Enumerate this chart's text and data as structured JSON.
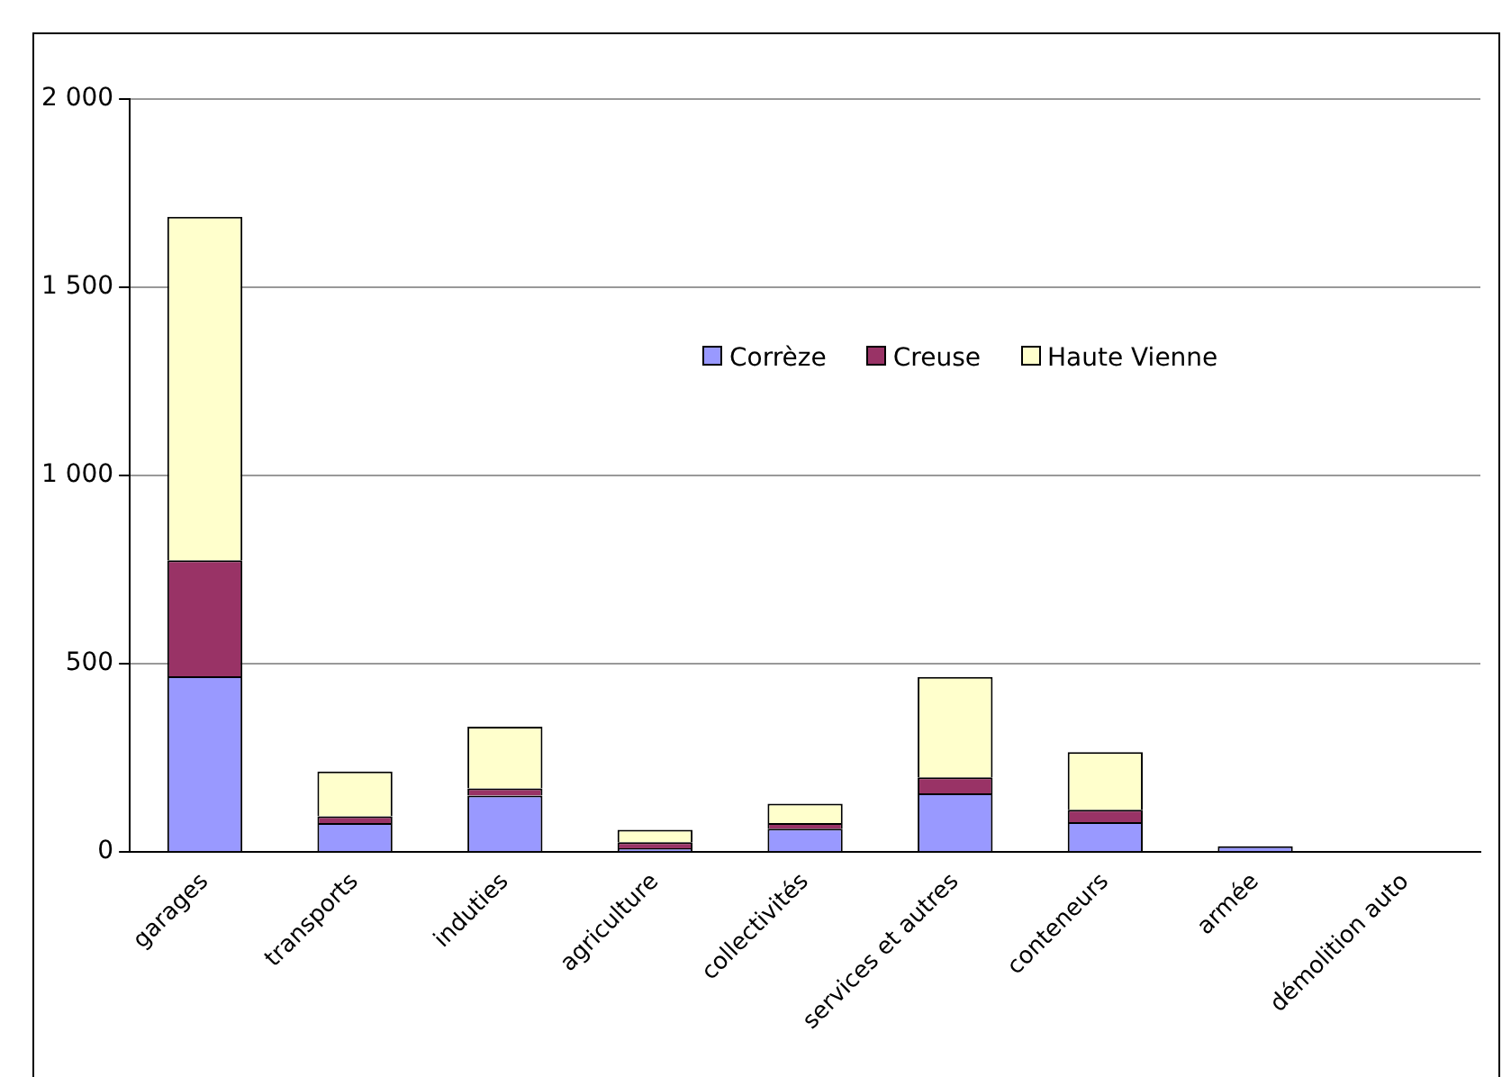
{
  "chart_data": {
    "type": "bar",
    "stacked": true,
    "categories": [
      "garages",
      "transports",
      "induties",
      "agriculture",
      "collectivités",
      "services et autres",
      "conteneurs",
      "armée",
      "démolition auto"
    ],
    "series": [
      {
        "name": "Corrèze",
        "color": "#9999ff",
        "values": [
          467,
          77,
          150,
          10,
          62,
          156,
          79,
          15,
          0
        ]
      },
      {
        "name": "Creuse",
        "color": "#993366",
        "values": [
          308,
          18,
          19,
          16,
          15,
          42,
          33,
          null,
          0
        ]
      },
      {
        "name": "Haute Vienne",
        "color": "#ffffcc",
        "values": [
          912,
          119,
          164,
          33,
          51,
          267,
          153,
          null,
          0
        ]
      }
    ],
    "ylim": [
      0,
      2000
    ],
    "yticks": [
      {
        "value": 0,
        "label": "0"
      },
      {
        "value": 500,
        "label": "500"
      },
      {
        "value": 1000,
        "label": "1 000"
      },
      {
        "value": 1500,
        "label": "1 500"
      },
      {
        "value": 2000,
        "label": "2 000"
      }
    ],
    "grid": "y",
    "legend": "top right"
  }
}
